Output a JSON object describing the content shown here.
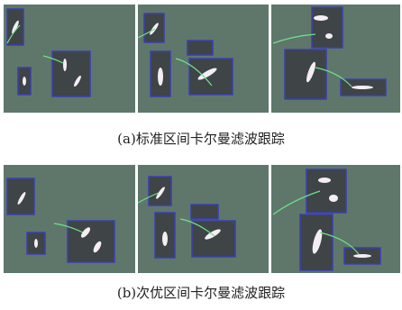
{
  "figure": {
    "captions": [
      "(a)标准区间卡尔曼滤波跟踪",
      "(b)次优区间卡尔曼滤波跟踪"
    ]
  }
}
